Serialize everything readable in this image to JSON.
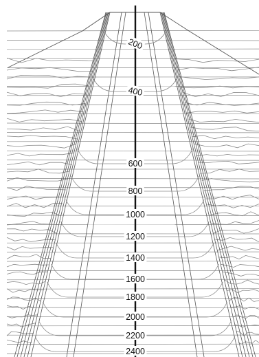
{
  "contour_labels": [
    {
      "text": "200",
      "depth": 200
    },
    {
      "text": "400",
      "depth": 400
    },
    {
      "text": "600",
      "depth": 600
    },
    {
      "text": "800",
      "depth": 800
    },
    {
      "text": "1000",
      "depth": 1000
    },
    {
      "text": "1200",
      "depth": 1200
    },
    {
      "text": "1400",
      "depth": 1400
    },
    {
      "text": "1600",
      "depth": 1600
    },
    {
      "text": "1800",
      "depth": 1800
    },
    {
      "text": "2000",
      "depth": 2000
    },
    {
      "text": "2200",
      "depth": 2200
    },
    {
      "text": "2400",
      "depth": 2400
    }
  ],
  "colors": {
    "background": "#ffffff",
    "contour": "#8a8a8a",
    "structure": "#555555",
    "axis": "#111111",
    "label": "#111111"
  }
}
